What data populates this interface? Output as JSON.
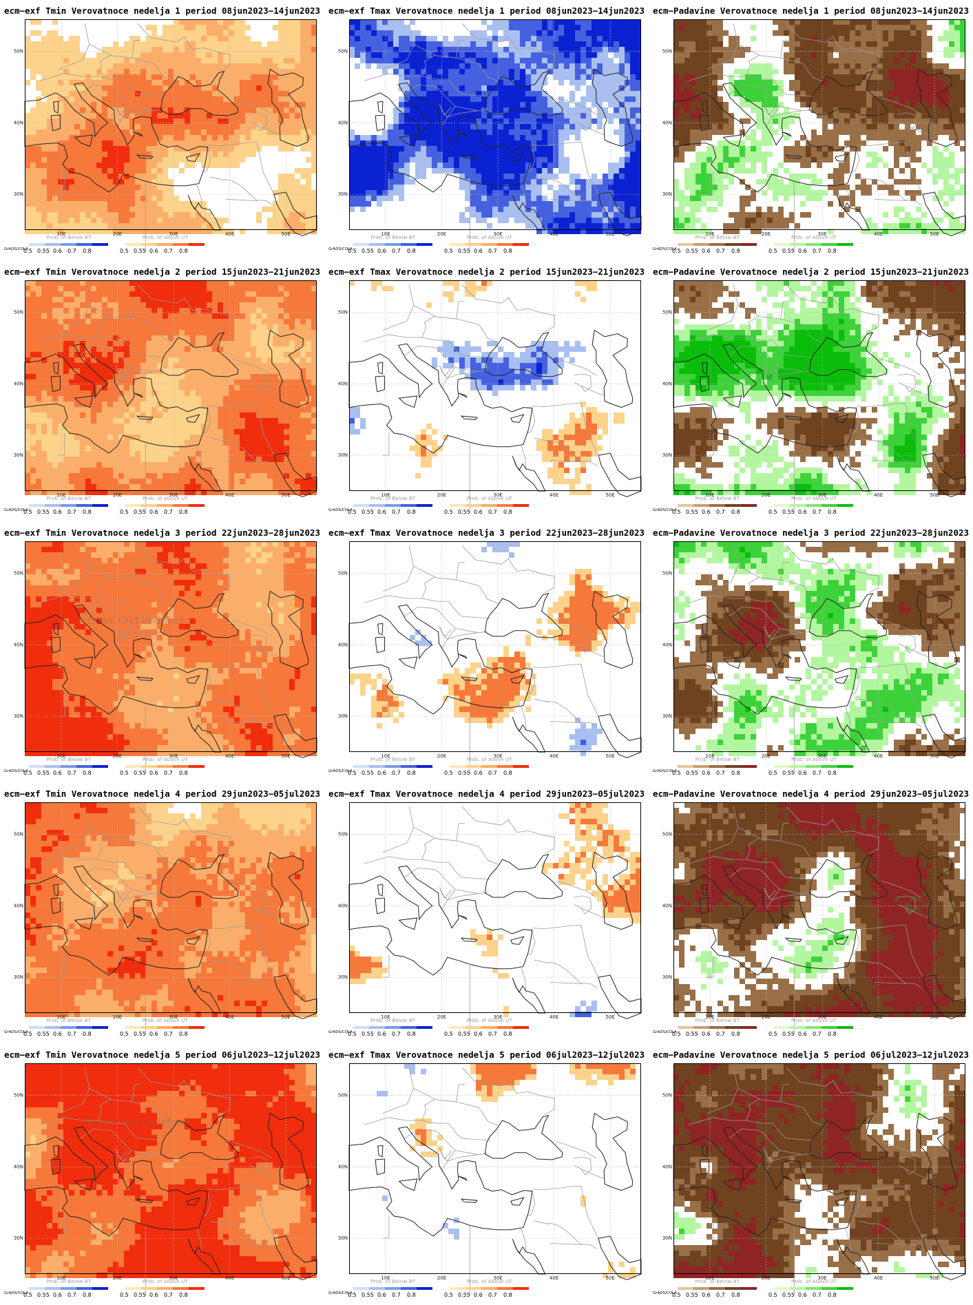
{
  "gradsLabel": "GrADS/COLA",
  "watermark": "Entire Grid Undefined",
  "legendValues": [
    "0.5",
    "0.55",
    "0.6",
    "0.7",
    "0.8"
  ],
  "latLabels": [
    "50N",
    "40N",
    "30N"
  ],
  "lonLabels": [
    "10E",
    "20E",
    "30E",
    "40E",
    "50E"
  ],
  "legendTitles": {
    "belowBT": "Prob. of Below BT",
    "aboveUT": "Prob. of Above UT"
  },
  "colors": {
    "ocean": "#ffffff",
    "coast": "#222222",
    "border": "#9a9a9a",
    "gridline": "#bbbbbb",
    "tempBelow": [
      "#d2def6",
      "#a9bff0",
      "#7b99ea",
      "#4561df",
      "#0b22d2"
    ],
    "tempAbove": [
      "#fde9b6",
      "#fdd28a",
      "#fbae6a",
      "#f6783b",
      "#f02d0d"
    ],
    "precBelow": [
      "#e1c8a2",
      "#c79f6d",
      "#996f48",
      "#6f4220",
      "#8e2424"
    ],
    "precAbove": [
      "#dcfbcf",
      "#b3f6a0",
      "#7ee86a",
      "#3ed23a",
      "#0bbd0b"
    ]
  },
  "rows": [
    {
      "week": "1",
      "panels": [
        {
          "title": "ecm−exf Tmin Verovatnoce nedelja 1 period 08jun2023−14jun2023",
          "type": "tmin"
        },
        {
          "title": "ecm−exf Tmax Verovatnoce nedelja 1 period 08jun2023−14jun2023",
          "type": "tmax"
        },
        {
          "title": "ecm−Padavine Verovatnoce nedelja 1 period 08jun2023−14jun2023",
          "type": "prec"
        }
      ]
    },
    {
      "week": "2",
      "panels": [
        {
          "title": "ecm−exf Tmin Verovatnoce nedelja 2 period 15jun2023−21jun2023",
          "type": "tmin"
        },
        {
          "title": "ecm−exf Tmax Verovatnoce nedelja 2 period 15jun2023−21jun2023",
          "type": "tmax"
        },
        {
          "title": "ecm−Padavine Verovatnoce nedelja 2 period 15jun2023−21jun2023",
          "type": "prec"
        }
      ]
    },
    {
      "week": "3",
      "panels": [
        {
          "title": "ecm−exf Tmin Verovatnoce nedelja 3 period 22jun2023−28jun2023",
          "type": "tmin"
        },
        {
          "title": "ecm−exf Tmax Verovatnoce nedelja 3 period 22jun2023−28jun2023",
          "type": "tmax"
        },
        {
          "title": "ecm−Padavine Verovatnoce nedelja 3 period 22jun2023−28jun2023",
          "type": "prec"
        }
      ]
    },
    {
      "week": "4",
      "panels": [
        {
          "title": "ecm−exf Tmin Verovatnoce nedelja 4 period 29jun2023−05jul2023",
          "type": "tmin"
        },
        {
          "title": "ecm−exf Tmax Verovatnoce nedelja 4 period 29jun2023−05jul2023",
          "type": "tmax"
        },
        {
          "title": "ecm−Padavine Verovatnoce nedelja 4 period 29jun2023−05jul2023",
          "type": "prec"
        }
      ]
    },
    {
      "week": "5",
      "panels": [
        {
          "title": "ecm−exf Tmin Verovatnoce nedelja 5 period 06jul2023−12jul2023",
          "type": "tmin"
        },
        {
          "title": "ecm−exf Tmax Verovatnoce nedelja 5 period 06jul2023−12jul2023",
          "type": "tmax"
        },
        {
          "title": "ecm−Padavine Verovatnoce nedelja 5 period 06jul2023−12jul2023",
          "type": "prec"
        }
      ]
    }
  ]
}
